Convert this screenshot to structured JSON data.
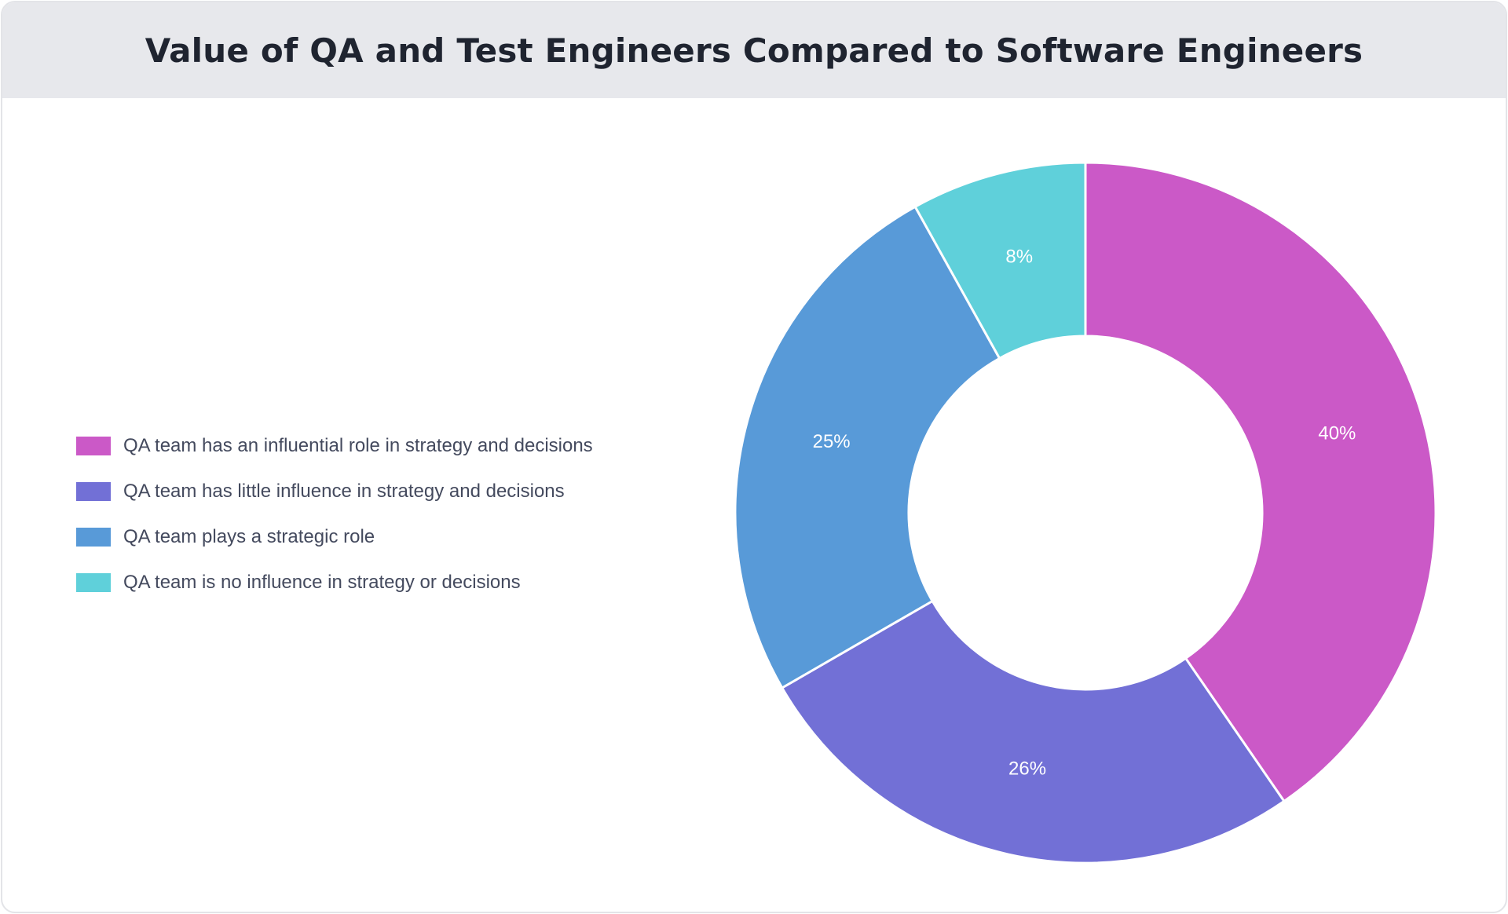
{
  "chart_data": {
    "type": "pie",
    "variant": "donut",
    "title": "Value of QA and Test Engineers Compared to Software Engineers",
    "legend_position": "left",
    "slices": [
      {
        "label": "QA team has an influential role in strategy and decisions",
        "value": 40,
        "display": "40%",
        "color": "#cb59c7"
      },
      {
        "label": "QA team has little influence in strategy and decisions",
        "value": 26,
        "display": "26%",
        "color": "#7270d6"
      },
      {
        "label": "QA team plays a strategic role",
        "value": 25,
        "display": "25%",
        "color": "#589ad8"
      },
      {
        "label": "QA team is no influence in strategy or decisions",
        "value": 8,
        "display": "8%",
        "color": "#5fd0da"
      }
    ]
  }
}
